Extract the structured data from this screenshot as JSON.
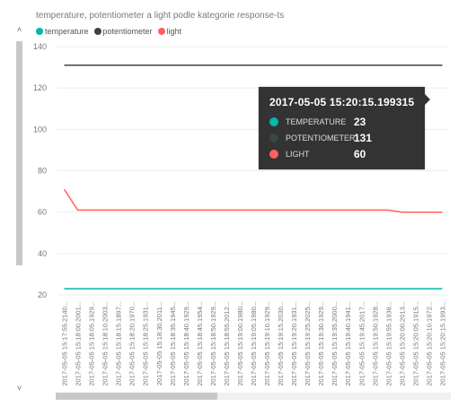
{
  "chart_data": {
    "type": "line",
    "title": "temperature, potentiometer a light podle kategorie response-ts",
    "xlabel": "",
    "ylabel": "",
    "ylim": [
      20,
      140
    ],
    "yticks": [
      20,
      40,
      60,
      80,
      100,
      120,
      140
    ],
    "grid": true,
    "legend_position": "top-left",
    "categories": [
      "2017-05-05 15:17:55.2140...",
      "2017-05-05 15:18:00.2001...",
      "2017-05-05 15:18:05.1929...",
      "2017-05-05 15:18:10.2003...",
      "2017-05-05 15:18:15.1897...",
      "2017-05-05 15:18:20.1970...",
      "2017-05-05 15:18:25.1931...",
      "2017-05-05 15:18:30.2011...",
      "2017-05-05 15:18:35.1945...",
      "2017-05-05 15:18:40.1929...",
      "2017-05-05 15:18:45.1954...",
      "2017-05-05 15:18:50.1929...",
      "2017-05-05 15:18:55.2012...",
      "2017-05-05 15:19:00.1980...",
      "2017-05-05 15:19:05.1980...",
      "2017-05-05 15:19:10.1929...",
      "2017-05-05 15:19:15.2030...",
      "2017-05-05 15:19:20.1931...",
      "2017-05-05 15:19:25.2025...",
      "2017-05-05 15:19:30.1929...",
      "2017-05-05 15:19:35.2000...",
      "2017-05-05 15:19:40.1941...",
      "2017-05-05 15:19:45.2017...",
      "2017-05-05 15:19:50.1928...",
      "2017-05-05 15:19:55.1936...",
      "2017-05-05 15:20:00.2013...",
      "2017-05-05 15:20:05.1915...",
      "2017-05-05 15:20:10.1972...",
      "2017-05-05 15:20:15.1993..."
    ],
    "series": [
      {
        "name": "temperature",
        "color": "#01b8aa",
        "values": [
          23,
          23,
          23,
          23,
          23,
          23,
          23,
          23,
          23,
          23,
          23,
          23,
          23,
          23,
          23,
          23,
          23,
          23,
          23,
          23,
          23,
          23,
          23,
          23,
          23,
          23,
          23,
          23,
          23
        ]
      },
      {
        "name": "potentiometer",
        "color": "#374649",
        "values": [
          131,
          131,
          131,
          131,
          131,
          131,
          131,
          131,
          131,
          131,
          131,
          131,
          131,
          131,
          131,
          131,
          131,
          131,
          131,
          131,
          131,
          131,
          131,
          131,
          131,
          131,
          131,
          131,
          131
        ]
      },
      {
        "name": "light",
        "color": "#fd625e",
        "values": [
          71,
          61,
          61,
          61,
          61,
          61,
          61,
          61,
          61,
          61,
          61,
          61,
          61,
          61,
          61,
          61,
          61,
          61,
          61,
          61,
          61,
          61,
          61,
          61,
          61,
          60,
          60,
          60,
          60
        ]
      }
    ]
  },
  "tooltip": {
    "title": "2017-05-05 15:20:15.199315",
    "rows": [
      {
        "label": "TEMPERATURE",
        "value": "23",
        "color": "#01b8aa"
      },
      {
        "label": "POTENTIOMETER",
        "value": "131",
        "color": "#374649"
      },
      {
        "label": "LIGHT",
        "value": "60",
        "color": "#fd625e"
      }
    ]
  },
  "scroll": {
    "up_arrow": "˄",
    "down_arrow": "˅"
  }
}
